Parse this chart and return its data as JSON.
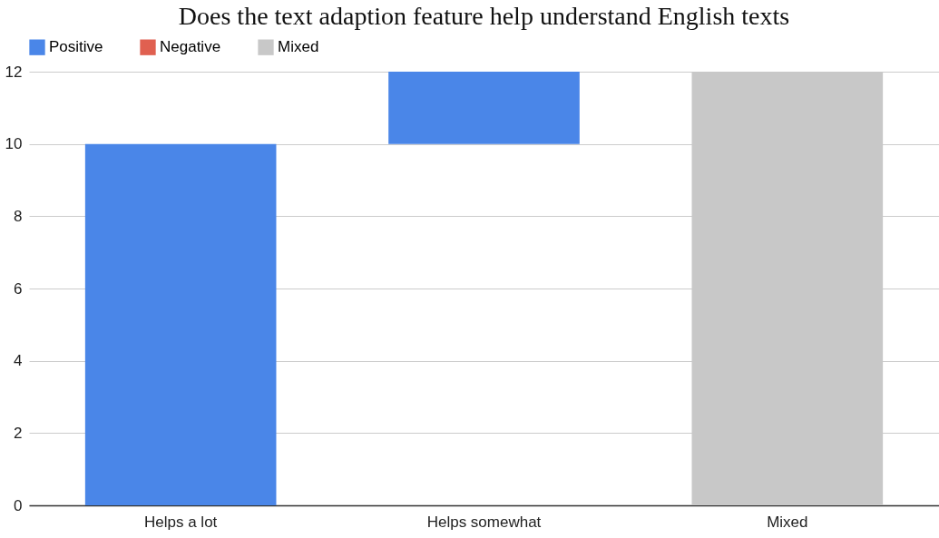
{
  "chart_data": {
    "type": "bar",
    "title": "Does the text adaption feature help understand English texts",
    "categories": [
      "Helps a lot",
      "Helps somewhat",
      "Mixed"
    ],
    "series": [
      {
        "name": "Positive",
        "color": "#4a86e8",
        "values": [
          10,
          2,
          null
        ],
        "base": [
          0,
          10,
          null
        ]
      },
      {
        "name": "Negative",
        "color": "#e06050",
        "values": [
          null,
          null,
          null
        ]
      },
      {
        "name": "Mixed",
        "color": "#c8c8c8",
        "values": [
          null,
          null,
          12
        ],
        "base": [
          null,
          null,
          0
        ]
      }
    ],
    "ylim": [
      0,
      12
    ],
    "yticks": [
      0,
      2,
      4,
      6,
      8,
      10,
      12
    ],
    "grid": "y",
    "legend": "top"
  }
}
